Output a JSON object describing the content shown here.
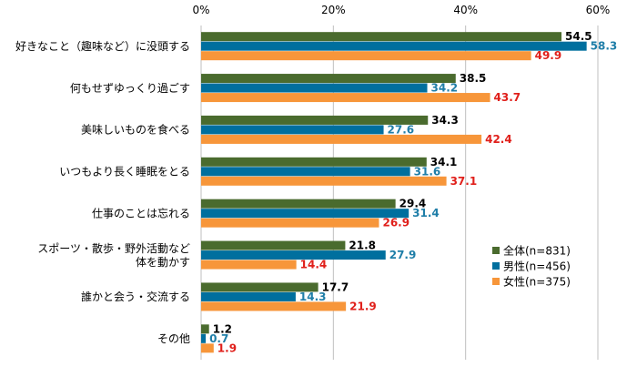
{
  "chart_data": {
    "type": "bar",
    "orientation": "horizontal",
    "title": "",
    "xlabel": "",
    "ylabel": "",
    "xlim": [
      0,
      60
    ],
    "x_ticks": [
      0,
      20,
      40,
      60
    ],
    "x_tick_labels": [
      "0%",
      "20%",
      "40%",
      "60%"
    ],
    "grid": true,
    "legend_position": "right",
    "categories": [
      [
        "好きなこと（趣味など）に没頭する"
      ],
      [
        "何もせずゆっくり過ごす"
      ],
      [
        "美味しいものを食べる"
      ],
      [
        "いつもより長く睡眠をとる"
      ],
      [
        "仕事のことは忘れる"
      ],
      [
        "スポーツ・散歩・野外活動など",
        "体を動かす"
      ],
      [
        "誰かと会う・交流する"
      ],
      [
        "その他"
      ]
    ],
    "series": [
      {
        "name": "全体(n=831)",
        "color": "#4a6b2e",
        "label_color": "#000000",
        "values": [
          54.5,
          38.5,
          34.3,
          34.1,
          29.4,
          21.8,
          17.7,
          1.2
        ],
        "labels": [
          "54.5",
          "38.5",
          "34.3",
          "34.1",
          "29.4",
          "21.8",
          "17.7",
          "1.2"
        ]
      },
      {
        "name": "男性(n=456)",
        "color": "#006f9e",
        "label_color": "#1f7ea8",
        "values": [
          58.3,
          34.2,
          27.6,
          31.6,
          31.4,
          27.9,
          14.3,
          0.7
        ],
        "labels": [
          "58.3",
          "34.2",
          "27.6",
          "31.6",
          "31.4",
          "27.9",
          "14.3",
          "0.7"
        ]
      },
      {
        "name": "女性(n=375)",
        "color": "#f7963a",
        "label_color": "#e0201b",
        "values": [
          49.9,
          43.7,
          42.4,
          37.1,
          26.9,
          14.4,
          21.9,
          1.9
        ],
        "labels": [
          "49.9",
          "43.7",
          "42.4",
          "37.1",
          "26.9",
          "14.4",
          "21.9",
          "1.9"
        ]
      }
    ]
  }
}
